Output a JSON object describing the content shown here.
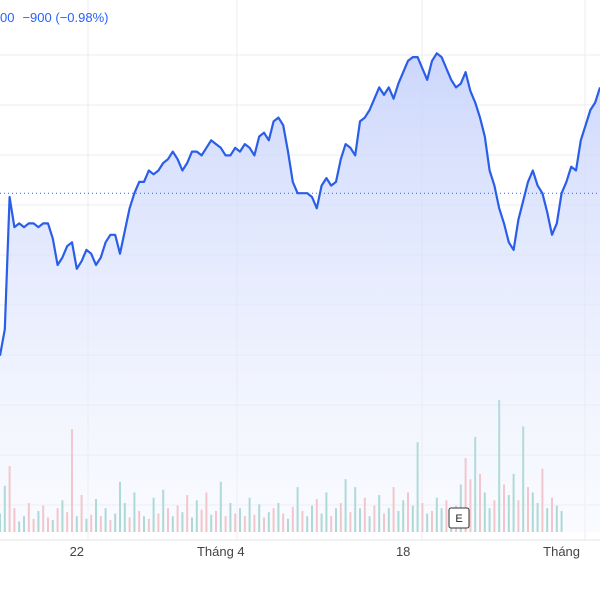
{
  "header": {
    "price_partial": "00",
    "change": "−900 (−0.98%)"
  },
  "event_marker": {
    "label": "E"
  },
  "colors": {
    "line": "#2a5ee8",
    "area_top": "#c6d2fb",
    "area_bottom": "#f2f5ff",
    "up_volume": "#7cc6b8",
    "down_volume": "#f3a4a4",
    "grid": "#ececec",
    "ref_line": "#2962ff"
  },
  "chart_data": {
    "type": "line",
    "title": "",
    "xlabel": "",
    "ylabel": "",
    "grid": true,
    "x_ticks": [
      {
        "label": "22",
        "index": 16
      },
      {
        "label": "Tháng 4",
        "index": 46
      },
      {
        "label": "18",
        "index": 84
      },
      {
        "label": "Tháng",
        "index": 117
      }
    ],
    "ylim": [
      0,
      100
    ],
    "reference_level": 60,
    "series": [
      {
        "values": [
          17,
          24,
          59,
          51,
          52,
          51,
          52,
          52,
          51,
          52,
          52,
          48,
          41,
          43,
          46,
          47,
          40,
          42,
          45,
          44,
          41,
          43,
          47,
          49,
          49,
          44,
          50,
          56,
          60,
          63,
          63,
          66,
          65,
          66,
          68,
          69,
          71,
          69,
          66,
          68,
          71,
          71,
          70,
          72,
          74,
          73,
          72,
          70,
          70,
          72,
          71,
          73,
          72,
          70,
          75,
          76,
          74,
          79,
          80,
          78,
          71,
          63,
          60,
          60,
          60,
          59,
          56,
          62,
          64,
          62,
          63,
          69,
          73,
          72,
          70,
          79,
          80,
          82,
          85,
          88,
          86,
          88,
          85,
          89,
          92,
          95,
          96,
          96,
          93,
          90,
          95,
          97,
          96,
          93,
          90,
          88,
          89,
          92,
          87,
          84,
          80,
          75,
          66,
          62,
          56,
          52,
          47,
          45,
          53,
          58,
          63,
          66,
          62,
          60,
          55,
          49,
          52,
          60,
          63,
          67,
          66,
          74,
          78,
          82,
          84,
          88
        ]
      }
    ],
    "volume": [
      {
        "v": 14,
        "up": true
      },
      {
        "v": 35,
        "up": true
      },
      {
        "v": 50,
        "up": false
      },
      {
        "v": 18,
        "up": false
      },
      {
        "v": 8,
        "up": true
      },
      {
        "v": 12,
        "up": true
      },
      {
        "v": 22,
        "up": false
      },
      {
        "v": 10,
        "up": false
      },
      {
        "v": 16,
        "up": true
      },
      {
        "v": 20,
        "up": false
      },
      {
        "v": 11,
        "up": false
      },
      {
        "v": 9,
        "up": true
      },
      {
        "v": 18,
        "up": false
      },
      {
        "v": 24,
        "up": true
      },
      {
        "v": 15,
        "up": false
      },
      {
        "v": 78,
        "up": false
      },
      {
        "v": 12,
        "up": true
      },
      {
        "v": 28,
        "up": false
      },
      {
        "v": 10,
        "up": true
      },
      {
        "v": 13,
        "up": false
      },
      {
        "v": 25,
        "up": true
      },
      {
        "v": 12,
        "up": false
      },
      {
        "v": 18,
        "up": true
      },
      {
        "v": 9,
        "up": false
      },
      {
        "v": 14,
        "up": true
      },
      {
        "v": 38,
        "up": true
      },
      {
        "v": 22,
        "up": true
      },
      {
        "v": 11,
        "up": false
      },
      {
        "v": 30,
        "up": true
      },
      {
        "v": 16,
        "up": false
      },
      {
        "v": 12,
        "up": true
      },
      {
        "v": 10,
        "up": false
      },
      {
        "v": 26,
        "up": true
      },
      {
        "v": 14,
        "up": false
      },
      {
        "v": 32,
        "up": true
      },
      {
        "v": 18,
        "up": false
      },
      {
        "v": 12,
        "up": true
      },
      {
        "v": 20,
        "up": false
      },
      {
        "v": 15,
        "up": true
      },
      {
        "v": 28,
        "up": false
      },
      {
        "v": 11,
        "up": true
      },
      {
        "v": 24,
        "up": true
      },
      {
        "v": 17,
        "up": false
      },
      {
        "v": 30,
        "up": false
      },
      {
        "v": 13,
        "up": true
      },
      {
        "v": 16,
        "up": false
      },
      {
        "v": 38,
        "up": true
      },
      {
        "v": 12,
        "up": false
      },
      {
        "v": 22,
        "up": true
      },
      {
        "v": 14,
        "up": false
      },
      {
        "v": 18,
        "up": true
      },
      {
        "v": 12,
        "up": false
      },
      {
        "v": 26,
        "up": true
      },
      {
        "v": 13,
        "up": false
      },
      {
        "v": 21,
        "up": true
      },
      {
        "v": 11,
        "up": false
      },
      {
        "v": 15,
        "up": true
      },
      {
        "v": 18,
        "up": false
      },
      {
        "v": 22,
        "up": true
      },
      {
        "v": 14,
        "up": false
      },
      {
        "v": 10,
        "up": true
      },
      {
        "v": 19,
        "up": false
      },
      {
        "v": 34,
        "up": true
      },
      {
        "v": 16,
        "up": false
      },
      {
        "v": 12,
        "up": true
      },
      {
        "v": 20,
        "up": true
      },
      {
        "v": 25,
        "up": false
      },
      {
        "v": 14,
        "up": true
      },
      {
        "v": 30,
        "up": true
      },
      {
        "v": 12,
        "up": false
      },
      {
        "v": 18,
        "up": true
      },
      {
        "v": 22,
        "up": false
      },
      {
        "v": 40,
        "up": true
      },
      {
        "v": 15,
        "up": false
      },
      {
        "v": 34,
        "up": true
      },
      {
        "v": 18,
        "up": true
      },
      {
        "v": 26,
        "up": false
      },
      {
        "v": 12,
        "up": true
      },
      {
        "v": 20,
        "up": false
      },
      {
        "v": 28,
        "up": true
      },
      {
        "v": 14,
        "up": false
      },
      {
        "v": 18,
        "up": true
      },
      {
        "v": 34,
        "up": false
      },
      {
        "v": 16,
        "up": true
      },
      {
        "v": 24,
        "up": true
      },
      {
        "v": 30,
        "up": false
      },
      {
        "v": 20,
        "up": true
      },
      {
        "v": 68,
        "up": true
      },
      {
        "v": 22,
        "up": false
      },
      {
        "v": 14,
        "up": true
      },
      {
        "v": 16,
        "up": false
      },
      {
        "v": 26,
        "up": true
      },
      {
        "v": 18,
        "up": true
      },
      {
        "v": 24,
        "up": false
      },
      {
        "v": 12,
        "up": true
      },
      {
        "v": 20,
        "up": false
      },
      {
        "v": 36,
        "up": true
      },
      {
        "v": 56,
        "up": false
      },
      {
        "v": 40,
        "up": false
      },
      {
        "v": 72,
        "up": true
      },
      {
        "v": 44,
        "up": false
      },
      {
        "v": 30,
        "up": true
      },
      {
        "v": 18,
        "up": true
      },
      {
        "v": 24,
        "up": false
      },
      {
        "v": 100,
        "up": true
      },
      {
        "v": 36,
        "up": false
      },
      {
        "v": 28,
        "up": true
      },
      {
        "v": 44,
        "up": true
      },
      {
        "v": 24,
        "up": false
      },
      {
        "v": 80,
        "up": true
      },
      {
        "v": 34,
        "up": false
      },
      {
        "v": 30,
        "up": true
      },
      {
        "v": 22,
        "up": true
      },
      {
        "v": 48,
        "up": false
      },
      {
        "v": 18,
        "up": true
      },
      {
        "v": 26,
        "up": false
      },
      {
        "v": 20,
        "up": true
      },
      {
        "v": 16,
        "up": true
      }
    ]
  }
}
